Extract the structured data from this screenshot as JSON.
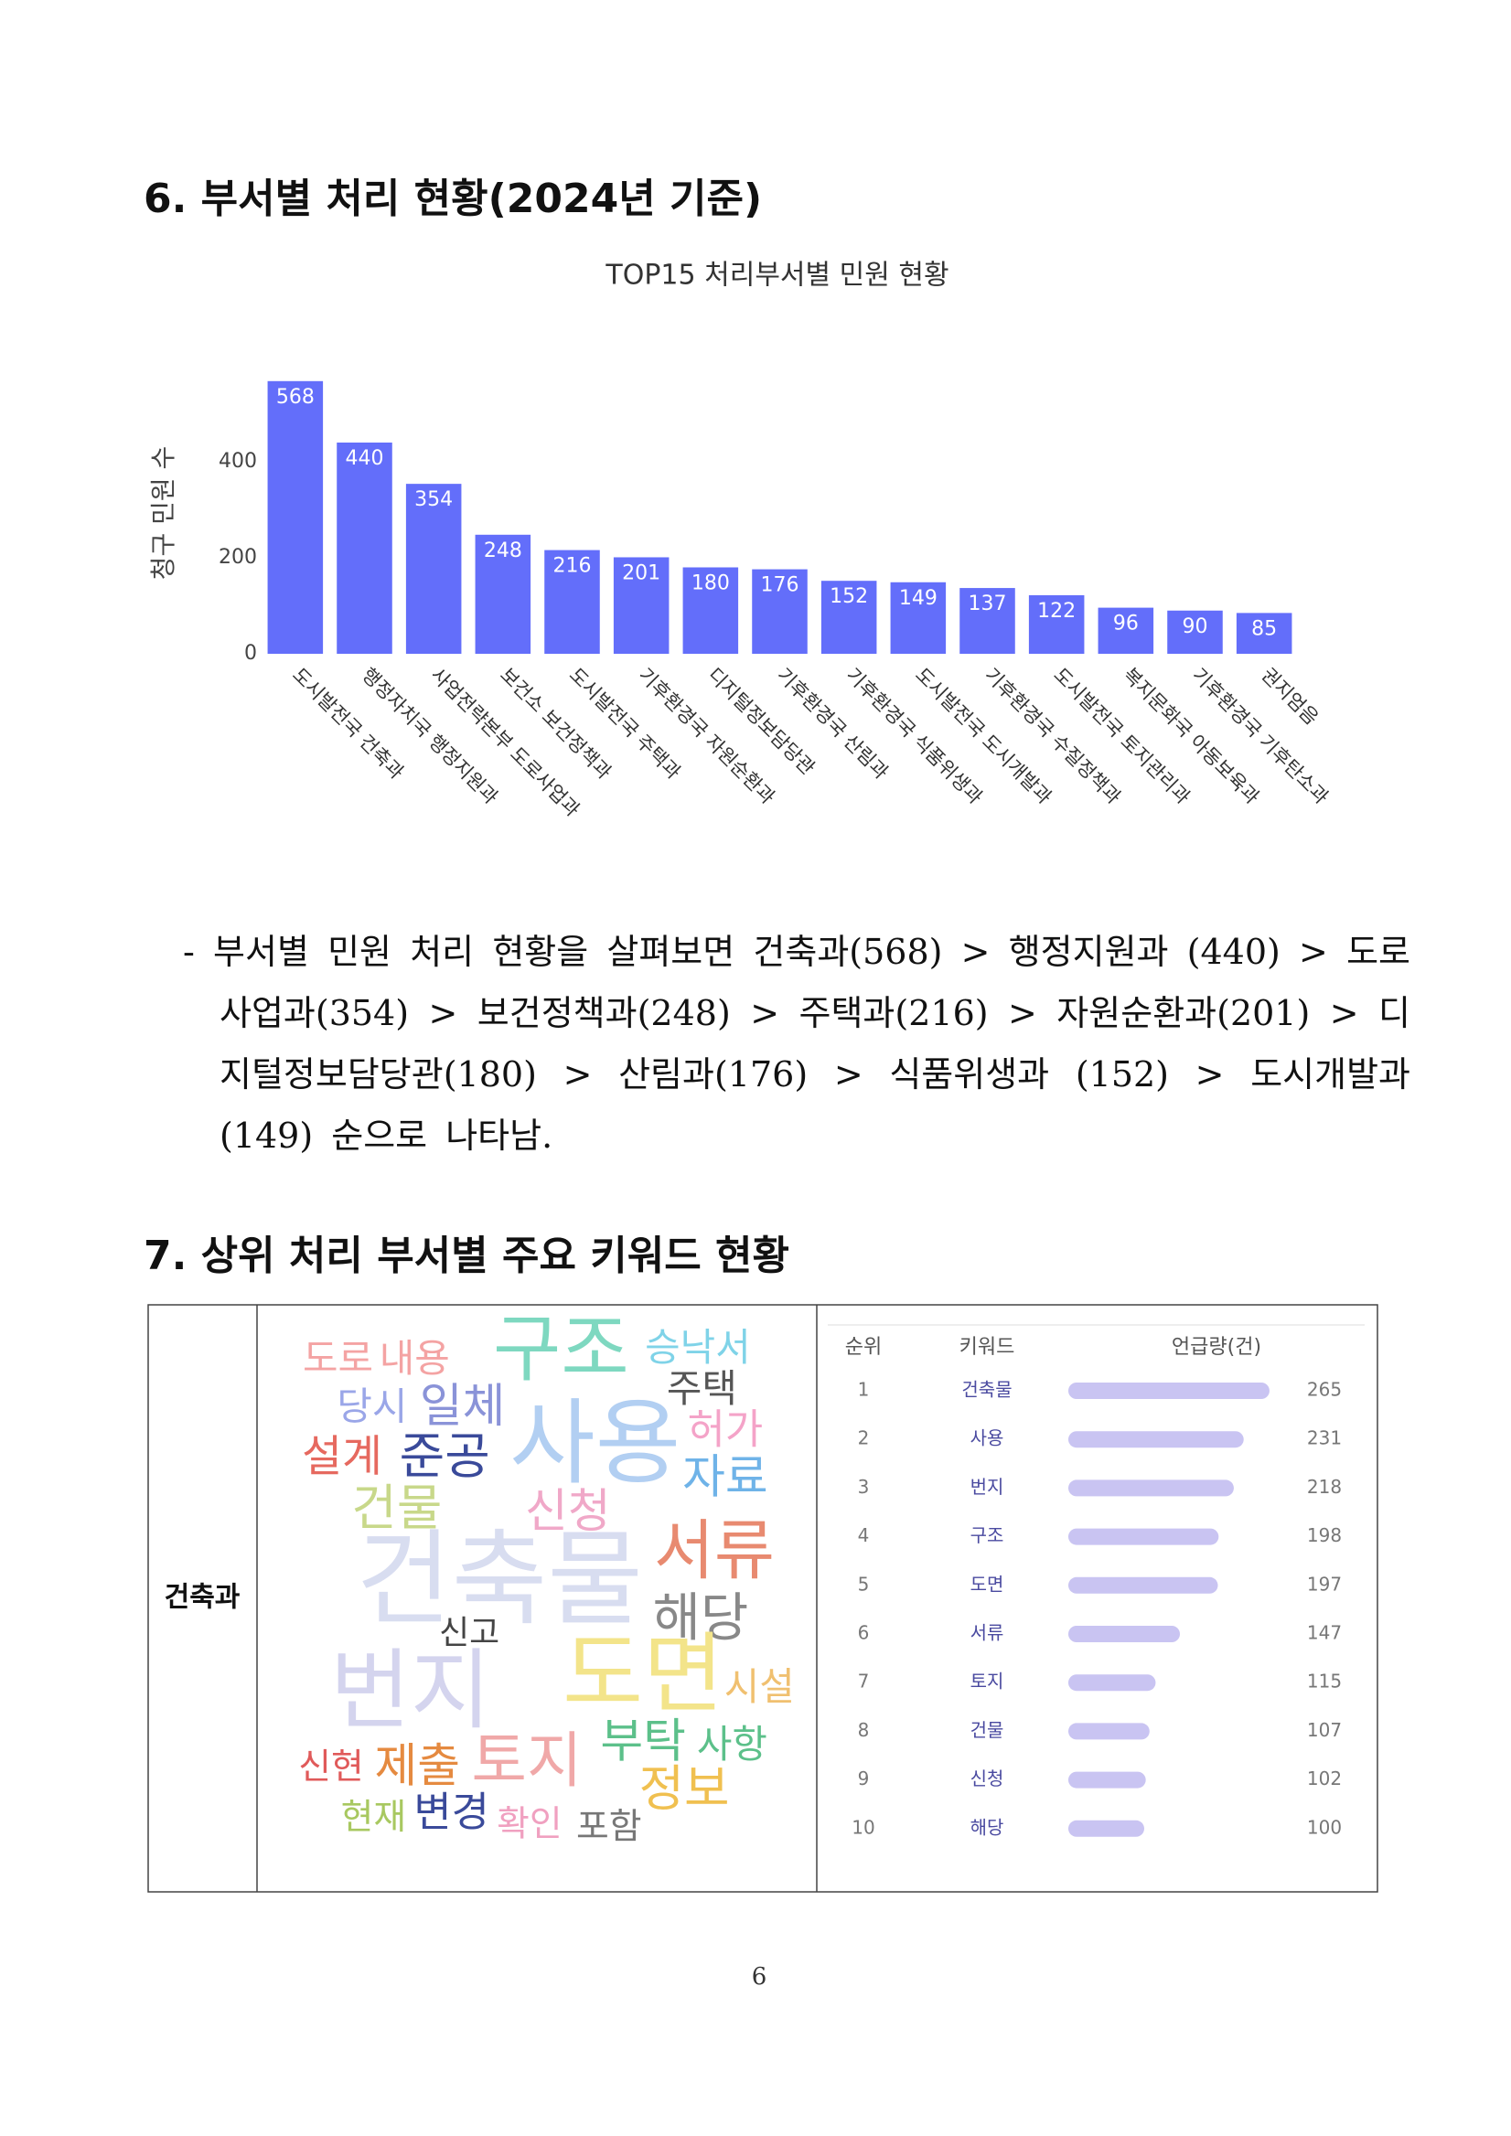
{
  "section6": {
    "heading": "6. 부서별 처리 현황(2024년 기준)"
  },
  "chart_data": {
    "type": "bar",
    "title": "TOP15 처리부서별 민원 현황",
    "y_label": "청구 민원 수",
    "categories": [
      "도시발전국 건축과",
      "행정자치국 행정지원과",
      "사업전략본부 도로사업과",
      "보건소 보건정책과",
      "도시발전국 주택과",
      "기후환경국 자원순환과",
      "디지털정보담당관",
      "기후환경국 산림과",
      "기후환경국 식품위생과",
      "도시발전국 도시개발과",
      "기후환경국 수질정책과",
      "도시발전국 토지관리과",
      "복지문화국 아동보육과",
      "기후환경국 기후탄소과",
      "권지엄음"
    ],
    "values": [
      568,
      440,
      354,
      248,
      216,
      201,
      180,
      176,
      152,
      149,
      137,
      122,
      96,
      90,
      85
    ],
    "color": "#636efa",
    "ylim": [
      0,
      600
    ],
    "yticks": [
      0,
      200,
      400
    ]
  },
  "paragraph": "- 부서별 민원 처리 현황을 살펴보면 건축과(568) > 행정지원과 (440) > 도로사업과(354) > 보건정책과(248) > 주택과(216) > 자원순환과(201) > 디지털정보담당관(180) > 산림과(176) > 식품위생과 (152) > 도시개발과(149) 순으로 나타남.",
  "section7": {
    "heading": "7. 상위 처리 부서별 주요 키워드 현황"
  },
  "table": {
    "department": "건축과",
    "wordcloud": [
      "도로",
      "내용",
      "구조",
      "승낙서",
      "주택",
      "당시",
      "일체",
      "허가",
      "설계",
      "준공",
      "사용",
      "자료",
      "건물",
      "신청",
      "서류",
      "건축물",
      "해당",
      "신고",
      "번지",
      "도면",
      "시설",
      "부탁",
      "사항",
      "신현",
      "제출",
      "토지",
      "정보",
      "현재",
      "변경",
      "확인",
      "포함"
    ],
    "keyword_table": {
      "headers": [
        "순위",
        "키워드",
        "언급량(건)"
      ],
      "rows": [
        {
          "rank": 1,
          "keyword": "건축물",
          "count": 265
        },
        {
          "rank": 2,
          "keyword": "사용",
          "count": 231
        },
        {
          "rank": 3,
          "keyword": "번지",
          "count": 218
        },
        {
          "rank": 4,
          "keyword": "구조",
          "count": 198
        },
        {
          "rank": 5,
          "keyword": "도면",
          "count": 197
        },
        {
          "rank": 6,
          "keyword": "서류",
          "count": 147
        },
        {
          "rank": 7,
          "keyword": "토지",
          "count": 115
        },
        {
          "rank": 8,
          "keyword": "건물",
          "count": 107
        },
        {
          "rank": 9,
          "keyword": "신청",
          "count": 102
        },
        {
          "rank": 10,
          "keyword": "해당",
          "count": 100
        }
      ]
    }
  },
  "page_number": "6"
}
